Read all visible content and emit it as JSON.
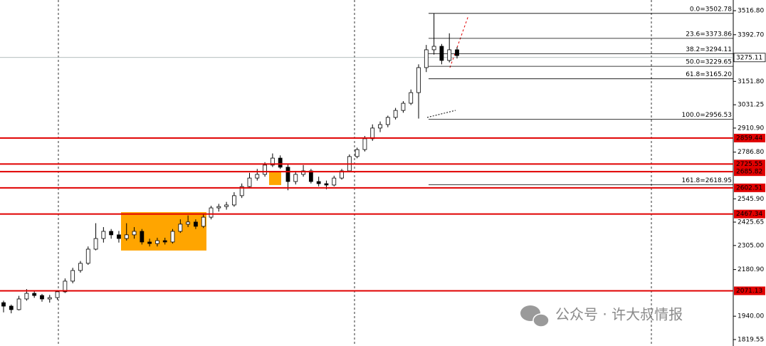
{
  "chart_data": {
    "type": "candlestick",
    "ylim": [
      1786.3,
      3571.9
    ],
    "yticks": [
      {
        "value": 3516.8,
        "label": "3516.80"
      },
      {
        "value": 3392.7,
        "label": "3392.70"
      },
      {
        "value": 3151.8,
        "label": "3151.80"
      },
      3031.25,
      {
        "value": 2910.9,
        "label": "2910.90"
      },
      {
        "value": 2786.8,
        "label": "2786.80"
      },
      {
        "value": 2545.9,
        "label": "2545.90"
      },
      2425.65,
      {
        "value": 2305,
        "label": "2305.00"
      },
      {
        "value": 2180.9,
        "label": "2180.90"
      },
      {
        "value": 1940,
        "label": "1940.00"
      },
      1819.55
    ],
    "grid": true,
    "up_color": "#ffffff",
    "down_color": "#000000",
    "level_color": "#e00000",
    "zone_color": "#ffa500",
    "candles": [
      [
        2010,
        2020,
        1960,
        1992
      ],
      [
        1992,
        2000,
        1955,
        1974
      ],
      [
        1974,
        2045,
        1970,
        2029
      ],
      [
        2029,
        2080,
        2020,
        2058
      ],
      [
        2058,
        2070,
        2035,
        2047
      ],
      [
        2047,
        2055,
        2015,
        2029
      ],
      [
        2029,
        2050,
        2010,
        2036
      ],
      [
        2036,
        2075,
        2025,
        2066
      ],
      [
        2066,
        2135,
        2060,
        2121
      ],
      [
        2121,
        2190,
        2110,
        2176
      ],
      [
        2176,
        2225,
        2165,
        2213
      ],
      [
        2213,
        2300,
        2205,
        2286
      ],
      [
        2286,
        2420,
        2280,
        2341
      ],
      [
        2341,
        2400,
        2320,
        2378
      ],
      [
        2378,
        2390,
        2340,
        2360
      ],
      [
        2360,
        2380,
        2320,
        2341
      ],
      [
        2341,
        2420,
        2330,
        2360
      ],
      [
        2360,
        2400,
        2340,
        2378
      ],
      [
        2378,
        2390,
        2310,
        2323
      ],
      [
        2323,
        2340,
        2300,
        2315
      ],
      [
        2315,
        2345,
        2300,
        2330
      ],
      [
        2330,
        2345,
        2310,
        2323
      ],
      [
        2323,
        2390,
        2315,
        2378
      ],
      [
        2378,
        2440,
        2370,
        2415
      ],
      [
        2415,
        2460,
        2400,
        2426
      ],
      [
        2426,
        2440,
        2390,
        2404
      ],
      [
        2404,
        2470,
        2395,
        2451
      ],
      [
        2451,
        2510,
        2440,
        2499
      ],
      [
        2499,
        2520,
        2480,
        2506
      ],
      [
        2506,
        2530,
        2490,
        2514
      ],
      [
        2514,
        2580,
        2505,
        2562
      ],
      [
        2562,
        2625,
        2550,
        2609
      ],
      [
        2609,
        2680,
        2600,
        2653
      ],
      [
        2653,
        2700,
        2640,
        2672
      ],
      [
        2672,
        2735,
        2660,
        2720
      ],
      [
        2720,
        2780,
        2710,
        2756
      ],
      [
        2756,
        2770,
        2700,
        2709
      ],
      [
        2709,
        2725,
        2590,
        2635
      ],
      [
        2635,
        2690,
        2620,
        2672
      ],
      [
        2672,
        2720,
        2660,
        2690
      ],
      [
        2690,
        2700,
        2625,
        2635
      ],
      [
        2635,
        2660,
        2610,
        2624
      ],
      [
        2624,
        2640,
        2595,
        2617
      ],
      [
        2617,
        2665,
        2610,
        2653
      ],
      [
        2653,
        2700,
        2645,
        2690
      ],
      [
        2690,
        2775,
        2685,
        2764
      ],
      [
        2764,
        2810,
        2755,
        2800
      ],
      [
        2800,
        2870,
        2790,
        2856
      ],
      [
        2856,
        2930,
        2845,
        2911
      ],
      [
        2911,
        2945,
        2890,
        2929
      ],
      [
        2929,
        2975,
        2915,
        2966
      ],
      [
        2966,
        3015,
        2955,
        3002
      ],
      [
        3002,
        3050,
        2990,
        3039
      ],
      [
        3039,
        3110,
        3030,
        3094
      ],
      [
        3094,
        3240,
        2960,
        3223
      ],
      [
        3223,
        3340,
        3200,
        3315
      ],
      [
        3315,
        3503,
        3290,
        3333
      ],
      [
        3333,
        3345,
        3240,
        3260
      ],
      [
        3260,
        3400,
        3250,
        3315
      ],
      [
        3315,
        3330,
        3270,
        3285
      ]
    ],
    "levels": [
      2859.44,
      2725.55,
      2685.82,
      2602.51,
      2467.34,
      2071.13
    ],
    "last_price": 3275.11,
    "zones": [
      {
        "low": 2279,
        "high": 2477
      },
      {
        "low": 2617,
        "high": 2690
      }
    ],
    "fibonacci": [
      {
        "label": "0.0=3502.78",
        "value": 3502.78
      },
      {
        "label": "23.6=3373.86",
        "value": 3373.86
      },
      {
        "label": "38.2=3294.11",
        "value": 3294.11
      },
      {
        "label": "50.0=3229.65",
        "value": 3229.65
      },
      {
        "label": "61.8=3165.20",
        "value": 3165.2
      },
      {
        "label": "100.0=2956.53",
        "value": 2956.53
      },
      {
        "label": "161.8=2618.95",
        "value": 2618.95
      }
    ]
  },
  "watermark": "公众号 · 许大叔情报"
}
